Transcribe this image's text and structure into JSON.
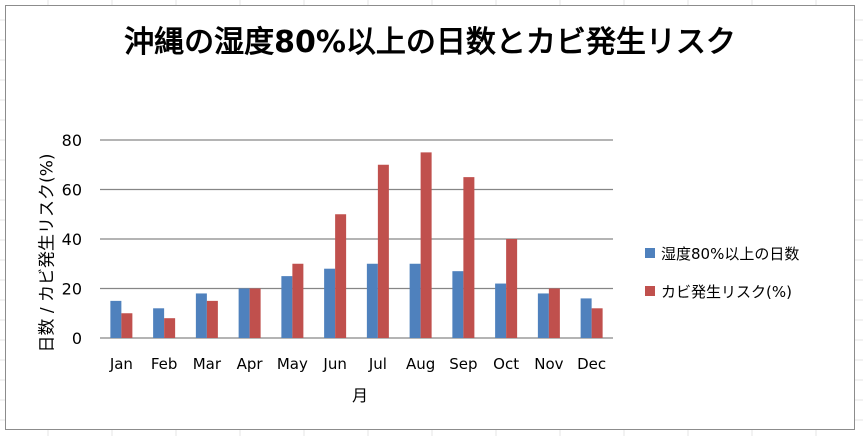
{
  "colors": {
    "humidity": "#4f81bd",
    "mold": "#c0504d",
    "gridline": "#868686",
    "axis": "#868686"
  },
  "chart_data": {
    "type": "bar",
    "title": "沖縄の湿度80%以上の日数とカビ発生リスク",
    "xlabel": "月",
    "ylabel": "日数 / カビ発生リスク(%)",
    "categories": [
      "Jan",
      "Feb",
      "Mar",
      "Apr",
      "May",
      "Jun",
      "Jul",
      "Aug",
      "Sep",
      "Oct",
      "Nov",
      "Dec"
    ],
    "series": [
      {
        "name": "湿度80%以上の日数",
        "color": "#4f81bd",
        "values": [
          15,
          12,
          18,
          20,
          25,
          28,
          30,
          30,
          27,
          22,
          18,
          16
        ]
      },
      {
        "name": "カビ発生リスク(%)",
        "color": "#c0504d",
        "values": [
          10,
          8,
          15,
          20,
          30,
          50,
          70,
          75,
          65,
          40,
          20,
          12
        ]
      }
    ],
    "ylim": [
      0,
      80
    ],
    "yticks": [
      0,
      20,
      40,
      60,
      80
    ],
    "grid": true,
    "legend_position": "right"
  }
}
